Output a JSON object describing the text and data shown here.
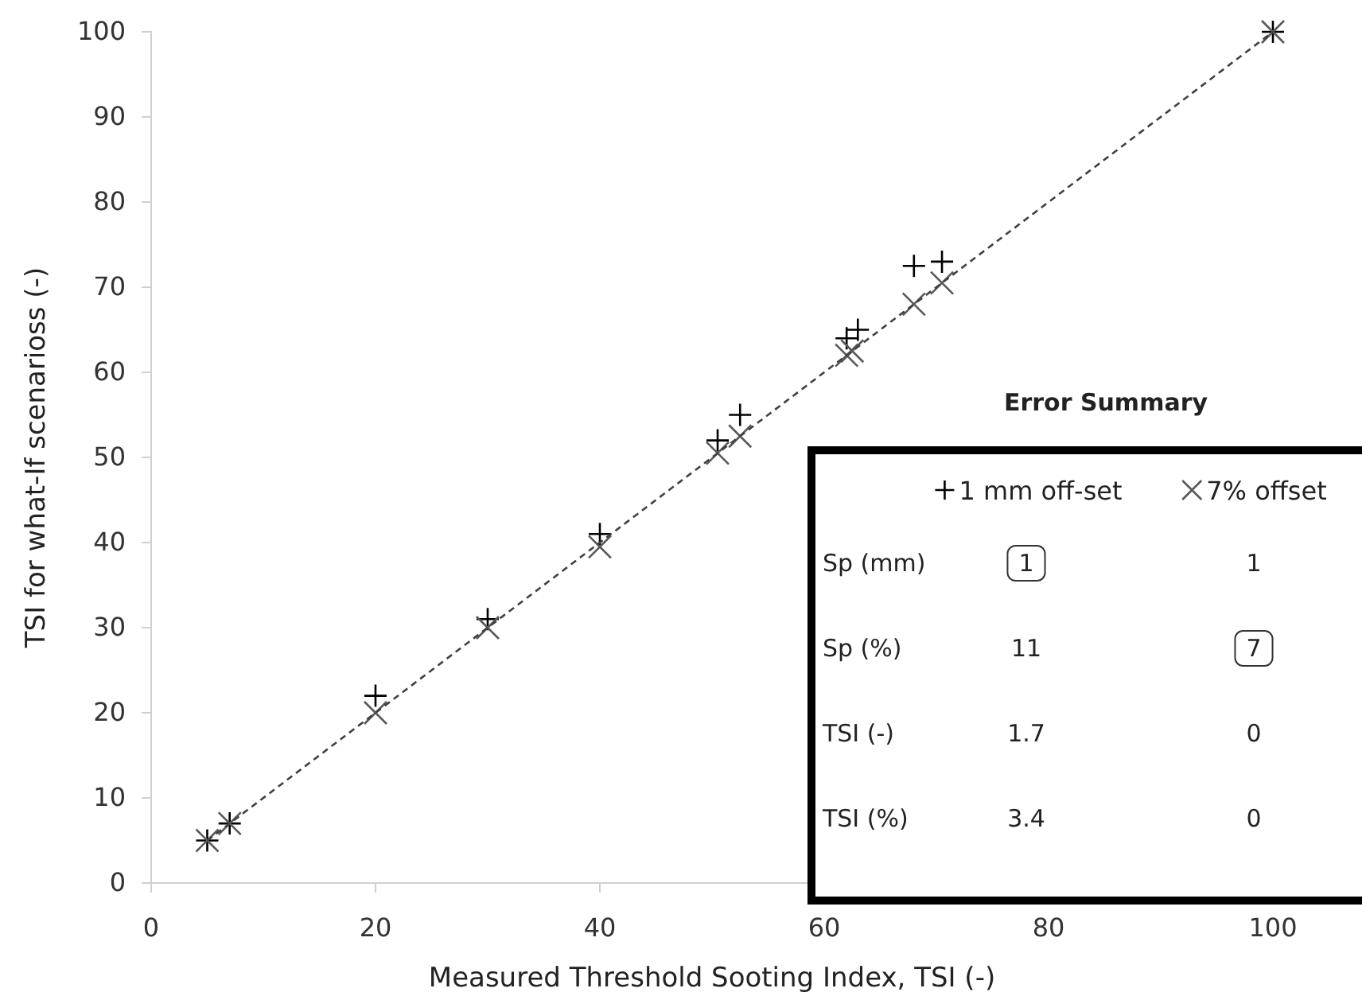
{
  "chart_data": {
    "type": "scatter",
    "xlabel": "Measured Threshold Sooting Index, TSI (-)",
    "ylabel": "TSI for what-If scenarioss (-)",
    "xlim": [
      0,
      100
    ],
    "ylim": [
      0,
      100
    ],
    "xticks": [
      0,
      20,
      40,
      60,
      80,
      100
    ],
    "yticks": [
      0,
      10,
      20,
      30,
      40,
      50,
      60,
      70,
      80,
      90,
      100
    ],
    "grid": false,
    "legend": "bottom right",
    "series": [
      {
        "name": "1 mm off-set",
        "color": "#000000",
        "marker": "cross",
        "x": [
          5,
          7,
          20,
          30,
          40,
          50.5,
          52.5,
          62,
          63,
          68,
          70.5,
          100
        ],
        "values": [
          5,
          7,
          22,
          31,
          41,
          52,
          55,
          64,
          65,
          72.5,
          73,
          100
        ]
      },
      {
        "name": "7% offset",
        "color": "#595959",
        "marker": "x",
        "x": [
          5,
          7,
          20,
          30,
          40,
          50.5,
          52.5,
          62,
          62.5,
          68,
          70.5,
          100
        ],
        "values": [
          5,
          7,
          20,
          30,
          39.5,
          50.5,
          52.5,
          62,
          62.5,
          68,
          70.5,
          100
        ]
      },
      {
        "type": "line",
        "color": "#404040",
        "marker": "none",
        "line_style": "dashed",
        "x": [
          5,
          100
        ],
        "values": [
          5,
          100
        ]
      }
    ],
    "annotations": [
      "Error Summary",
      "Sp (mm)",
      "1",
      "1",
      "Sp (%)",
      "11",
      "7",
      "TSI (-)",
      "1.7",
      "0",
      "TSI (%)",
      "3.4",
      "0"
    ]
  }
}
